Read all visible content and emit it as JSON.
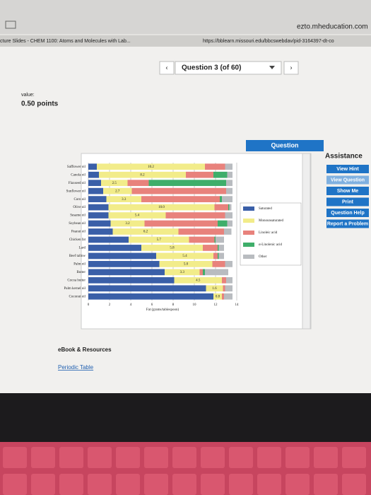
{
  "browser": {
    "host": "ezto.mheducation.com",
    "tab": "cture Slides - CHEM 1100: Atoms and Molecules with Lab...",
    "url": "https://bblearn.missouri.edu/bbcswebdav/pid-3164397-dt-co"
  },
  "nav": {
    "question": "Question 3 (of 60)"
  },
  "score": {
    "label": "value:",
    "points": "0.50 points"
  },
  "tabs": {
    "question": "Question"
  },
  "assistance": {
    "title": "Assistance",
    "buttons": [
      "View Hint",
      "View Question",
      "Show Me",
      "Print",
      "Question Help",
      "Report a Problem"
    ]
  },
  "links": {
    "ebook": "eBook & Resources",
    "periodic": "Periodic Table"
  },
  "chart_data": {
    "type": "stacked-hbar",
    "xlabel": "Fat (grams/tablespoon)",
    "categories": [
      "Safflower oil",
      "Canola oil",
      "Flaxseed oil",
      "Sunflower oil",
      "Corn oil",
      "Olive oil",
      "Sesame oil",
      "Soybean oil",
      "Peanut oil",
      "Chicken fat",
      "Lard",
      "Beef tallow",
      "Palm oil",
      "Butter",
      "Cocoa butter",
      "Palm kernel oil",
      "Coconut oil"
    ],
    "series": [
      {
        "name": "Saturated",
        "color": "#3a5fa8",
        "values": [
          0.8,
          1.0,
          1.2,
          1.4,
          1.7,
          1.9,
          1.9,
          2.1,
          2.3,
          3.8,
          5.0,
          6.4,
          6.7,
          7.2,
          8.1,
          11.1,
          11.8
        ]
      },
      {
        "name": "Monounsaturated",
        "color": "#f2ec8a",
        "values": [
          10.2,
          8.2,
          2.5,
          2.7,
          3.3,
          10.0,
          5.4,
          3.2,
          6.2,
          5.7,
          5.8,
          5.4,
          5.0,
          3.3,
          4.5,
          1.6,
          0.8
        ],
        "value_labels": [
          "10.2",
          "8.2",
          "2.5",
          "2.7",
          "3.3",
          "10.0",
          "5.4",
          "3.2",
          "6.2",
          "5.7",
          "5.8",
          "5.4",
          "5.0",
          "3.3",
          "4.5",
          "1.6",
          "0.8"
        ]
      },
      {
        "name": "Linoleic acid",
        "color": "#e8827c",
        "values": [
          1.9,
          2.6,
          2.0,
          8.9,
          7.4,
          1.3,
          5.6,
          6.9,
          4.3,
          2.4,
          1.4,
          0.4,
          1.2,
          0.3,
          0.4,
          0.2,
          0.2
        ]
      },
      {
        "name": "α-Linolenic acid",
        "color": "#3fae6a",
        "values": [
          0,
          1.3,
          7.3,
          0,
          0.2,
          0.1,
          0,
          0.9,
          0,
          0.1,
          0.1,
          0.1,
          0,
          0.2,
          0,
          0,
          0
        ]
      },
      {
        "name": "Other",
        "color": "#b9bcc0",
        "values": [
          0.7,
          0.5,
          0.6,
          0.6,
          1.0,
          0.2,
          0.7,
          0.5,
          0.7,
          0.8,
          0.5,
          0.5,
          0.7,
          2.2,
          0.6,
          0.7,
          0.8
        ]
      }
    ],
    "xlim": [
      0,
      14
    ],
    "xticks": [
      0,
      2,
      4,
      6,
      8,
      10,
      12,
      14
    ],
    "grid": true
  }
}
